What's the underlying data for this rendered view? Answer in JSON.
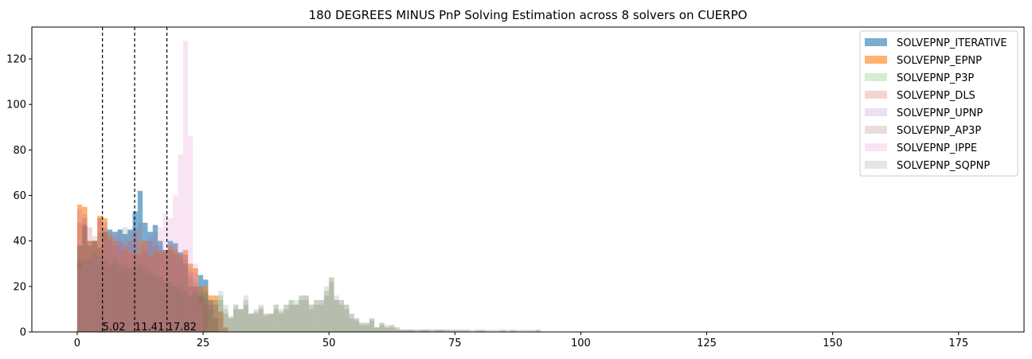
{
  "chart_data": {
    "type": "bar",
    "title": "180 DEGREES MINUS PnP Solving Estimation across 8 solvers on CUERPO",
    "xlabel": "",
    "ylabel": "",
    "xlim": [
      -9,
      188
    ],
    "ylim": [
      0,
      134
    ],
    "xticks": [
      0,
      25,
      50,
      75,
      100,
      125,
      150,
      175
    ],
    "yticks": [
      0,
      20,
      40,
      60,
      80,
      100,
      120
    ],
    "bin_width": 1,
    "grid": false,
    "legend_position": "top-right",
    "vlines": [
      {
        "x": 5.02,
        "label": "5.02"
      },
      {
        "x": 11.41,
        "label": "11.41"
      },
      {
        "x": 17.82,
        "label": "17.82"
      }
    ],
    "series": [
      {
        "name": "SOLVEPNP_ITERATIVE",
        "color": "#1f77b4",
        "alpha": 0.6,
        "x": [
          0,
          1,
          2,
          3,
          4,
          5,
          6,
          7,
          8,
          9,
          10,
          11,
          12,
          13,
          14,
          15,
          16,
          17,
          18,
          19,
          20,
          21,
          22,
          23,
          24,
          25,
          26,
          27
        ],
        "values": [
          38,
          47,
          38,
          40,
          37,
          44,
          45,
          44,
          45,
          43,
          45,
          53,
          62,
          48,
          44,
          47,
          40,
          36,
          40,
          39,
          35,
          30,
          20,
          20,
          25,
          23,
          14,
          6
        ]
      },
      {
        "name": "SOLVEPNP_EPNP",
        "color": "#ff7f0e",
        "alpha": 0.6,
        "x": [
          0,
          1,
          2,
          3,
          4,
          5,
          6,
          7,
          8,
          9,
          10,
          11,
          12,
          13,
          14,
          15,
          16,
          17,
          18,
          19,
          20,
          21,
          22,
          23,
          24,
          25,
          26,
          27,
          28,
          29
        ],
        "values": [
          56,
          55,
          40,
          40,
          51,
          50,
          43,
          40,
          35,
          38,
          35,
          34,
          40,
          40,
          33,
          35,
          35,
          35,
          38,
          36,
          33,
          36,
          30,
          28,
          20,
          20,
          16,
          16,
          9,
          2
        ]
      },
      {
        "name": "SOLVEPNP_P3P",
        "color": "#2ca02c",
        "alpha": 0.2,
        "x": [
          0,
          1,
          2,
          3,
          4,
          5,
          6,
          7,
          8,
          9,
          10,
          11,
          12,
          13,
          14,
          15,
          16,
          17,
          18,
          19,
          20,
          21,
          22,
          23,
          24,
          25,
          26,
          27,
          28,
          29,
          30,
          31,
          32,
          33,
          34,
          35,
          36,
          37,
          38,
          39,
          40,
          41,
          42,
          43,
          44,
          45,
          46,
          47,
          48,
          49,
          50,
          51,
          52,
          53,
          54,
          55,
          56,
          57,
          58,
          59,
          60,
          61,
          62,
          63,
          64,
          65,
          66,
          68,
          69,
          71,
          72,
          74,
          75,
          76,
          77,
          79,
          80,
          84,
          86,
          91
        ],
        "values": [
          30,
          32,
          30,
          35,
          33,
          30,
          28,
          32,
          30,
          28,
          26,
          30,
          28,
          30,
          25,
          26,
          24,
          22,
          22,
          20,
          21,
          18,
          15,
          16,
          18,
          17,
          10,
          14,
          16,
          10,
          6,
          12,
          10,
          14,
          8,
          8,
          11,
          7,
          8,
          12,
          9,
          12,
          14,
          12,
          16,
          14,
          10,
          14,
          12,
          18,
          24,
          14,
          14,
          12,
          8,
          6,
          3,
          4,
          6,
          2,
          4,
          3,
          2,
          1,
          1,
          1,
          1,
          1,
          1,
          1,
          1,
          1,
          1,
          1,
          1,
          1,
          1,
          1,
          1,
          1
        ]
      },
      {
        "name": "SOLVEPNP_DLS",
        "color": "#d62728",
        "alpha": 0.2,
        "x": [
          0,
          1,
          2,
          3,
          4,
          5,
          6,
          7,
          8,
          9,
          10,
          11,
          12,
          13,
          14,
          15,
          16,
          17,
          18,
          19,
          20,
          21,
          22,
          23,
          24,
          25
        ],
        "values": [
          48,
          50,
          46,
          40,
          50,
          44,
          40,
          38,
          40,
          36,
          40,
          44,
          34,
          36,
          40,
          38,
          36,
          36,
          36,
          34,
          34,
          34,
          26,
          20,
          16,
          12
        ]
      },
      {
        "name": "SOLVEPNP_UPNP",
        "color": "#9467bd",
        "alpha": 0.2,
        "x": [
          0,
          1,
          2,
          3,
          4,
          5,
          6,
          7,
          8,
          9,
          10,
          11,
          12,
          13,
          14,
          15,
          16,
          17,
          18,
          19,
          20,
          21,
          22,
          23,
          24,
          25,
          26,
          27,
          28
        ],
        "values": [
          54,
          52,
          40,
          40,
          50,
          48,
          42,
          40,
          36,
          38,
          34,
          34,
          38,
          40,
          32,
          34,
          34,
          34,
          36,
          34,
          32,
          34,
          28,
          26,
          20,
          18,
          14,
          12,
          6
        ]
      },
      {
        "name": "SOLVEPNP_AP3P",
        "color": "#8c564b",
        "alpha": 0.2,
        "x": [
          0,
          1,
          2,
          3,
          4,
          5,
          6,
          7,
          8,
          9,
          10,
          11,
          12,
          13,
          14,
          15,
          16,
          17,
          18,
          19,
          20,
          21,
          22,
          23,
          24,
          25,
          26,
          27,
          28,
          29,
          30,
          31,
          32,
          33,
          34,
          35,
          36,
          37,
          38,
          39,
          40,
          41,
          42,
          43,
          44,
          45,
          46,
          47,
          48,
          49,
          50,
          51,
          52,
          53,
          54,
          55,
          56,
          57,
          58,
          59,
          60,
          61,
          62,
          63,
          64,
          65,
          66,
          67,
          68,
          69,
          70,
          71,
          72,
          73
        ],
        "values": [
          32,
          30,
          32,
          34,
          30,
          32,
          30,
          30,
          28,
          30,
          28,
          28,
          30,
          26,
          27,
          24,
          24,
          22,
          20,
          20,
          19,
          18,
          16,
          18,
          16,
          15,
          12,
          12,
          14,
          8,
          7,
          10,
          10,
          12,
          8,
          9,
          10,
          8,
          8,
          10,
          8,
          10,
          12,
          12,
          14,
          16,
          12,
          12,
          14,
          16,
          22,
          14,
          12,
          10,
          6,
          5,
          4,
          3,
          5,
          2,
          3,
          2,
          3,
          2,
          1,
          1,
          1,
          1,
          1,
          1,
          1,
          1,
          1,
          1
        ]
      },
      {
        "name": "SOLVEPNP_IPPE",
        "color": "#e377c2",
        "alpha": 0.2,
        "x": [
          0,
          1,
          2,
          3,
          4,
          5,
          6,
          7,
          8,
          9,
          10,
          11,
          12,
          13,
          14,
          15,
          16,
          17,
          18,
          19,
          20,
          21,
          22,
          23,
          24
        ],
        "values": [
          28,
          30,
          30,
          34,
          32,
          40,
          40,
          44,
          42,
          40,
          40,
          45,
          46,
          40,
          40,
          42,
          46,
          52,
          50,
          60,
          78,
          128,
          86,
          30,
          12
        ]
      },
      {
        "name": "SOLVEPNP_SQPNP",
        "color": "#7f7f7f",
        "alpha": 0.2,
        "x": [
          0,
          1,
          2,
          3,
          4,
          5,
          6,
          7,
          8,
          9,
          10,
          11,
          12,
          13,
          14,
          15,
          16,
          17,
          18,
          19,
          20,
          21,
          22,
          23,
          24,
          25,
          26,
          27,
          28,
          29,
          30,
          31,
          32,
          33,
          34,
          35,
          36,
          37,
          38,
          39,
          40,
          41,
          42,
          43,
          44,
          45,
          46,
          47,
          48,
          49,
          50,
          51,
          52,
          53,
          54,
          55,
          56,
          57,
          58,
          59,
          60,
          61,
          62,
          63,
          64,
          65,
          66,
          67,
          68,
          69,
          70,
          71,
          72,
          73,
          74,
          75,
          76,
          77,
          78,
          79,
          80,
          81,
          82,
          83,
          84,
          85,
          86,
          87,
          88,
          89,
          90,
          91
        ],
        "values": [
          38,
          46,
          40,
          42,
          44,
          46,
          44,
          42,
          45,
          46,
          44,
          46,
          48,
          40,
          42,
          44,
          38,
          36,
          38,
          36,
          34,
          32,
          24,
          22,
          20,
          18,
          14,
          14,
          18,
          12,
          6,
          12,
          10,
          16,
          8,
          10,
          12,
          8,
          8,
          12,
          10,
          12,
          14,
          14,
          16,
          16,
          12,
          14,
          14,
          20,
          24,
          16,
          14,
          12,
          8,
          6,
          4,
          4,
          6,
          2,
          4,
          2,
          3,
          2,
          1,
          1,
          1,
          1,
          1,
          1,
          1,
          1,
          1,
          1,
          1,
          1,
          1,
          1,
          1,
          1,
          1,
          1,
          1,
          1,
          1,
          1,
          1,
          1,
          1,
          1,
          1,
          1
        ]
      }
    ]
  }
}
